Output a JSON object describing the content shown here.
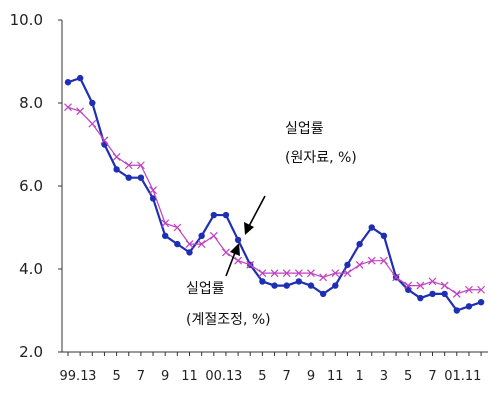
{
  "chart_data": {
    "type": "line",
    "ylim": [
      2.0,
      10.0
    ],
    "y_ticks": [
      "2.0",
      "4.0",
      "6.0",
      "8.0",
      "10.0"
    ],
    "x_tick_labels": [
      "99.1",
      "3",
      "5",
      "7",
      "9",
      "11",
      "00.1",
      "3",
      "5",
      "7",
      "9",
      "11",
      "1",
      "3",
      "5",
      "7",
      "01.11"
    ],
    "grid": false,
    "series": [
      {
        "name": "실업률 (원자료, %)",
        "color": "#1f2fb4",
        "marker": "dot",
        "values": [
          8.5,
          8.6,
          8.0,
          7.0,
          6.4,
          6.2,
          6.2,
          5.7,
          4.8,
          4.6,
          4.4,
          4.8,
          5.3,
          5.3,
          4.7,
          4.1,
          3.7,
          3.6,
          3.6,
          3.7,
          3.6,
          3.4,
          3.6,
          4.1,
          4.6,
          5.0,
          4.8,
          3.8,
          3.5,
          3.3,
          3.4,
          3.4,
          3.0,
          3.1,
          3.2
        ]
      },
      {
        "name": "실업률 (계절조정, %)",
        "color": "#c040c0",
        "marker": "x",
        "values": [
          7.9,
          7.8,
          7.5,
          7.1,
          6.7,
          6.5,
          6.5,
          5.9,
          5.1,
          5.0,
          4.6,
          4.6,
          4.8,
          4.4,
          4.2,
          4.1,
          3.9,
          3.9,
          3.9,
          3.9,
          3.9,
          3.8,
          3.9,
          3.9,
          4.1,
          4.2,
          4.2,
          3.8,
          3.6,
          3.6,
          3.7,
          3.6,
          3.4,
          3.5,
          3.5
        ]
      }
    ],
    "annotations": [
      {
        "id": "raw",
        "line1": "실업률",
        "line2": "(원자료, %)",
        "series_index": 0
      },
      {
        "id": "sa",
        "line1": "실업률",
        "line2": "(계절조정, %)",
        "series_index": 1
      }
    ]
  }
}
